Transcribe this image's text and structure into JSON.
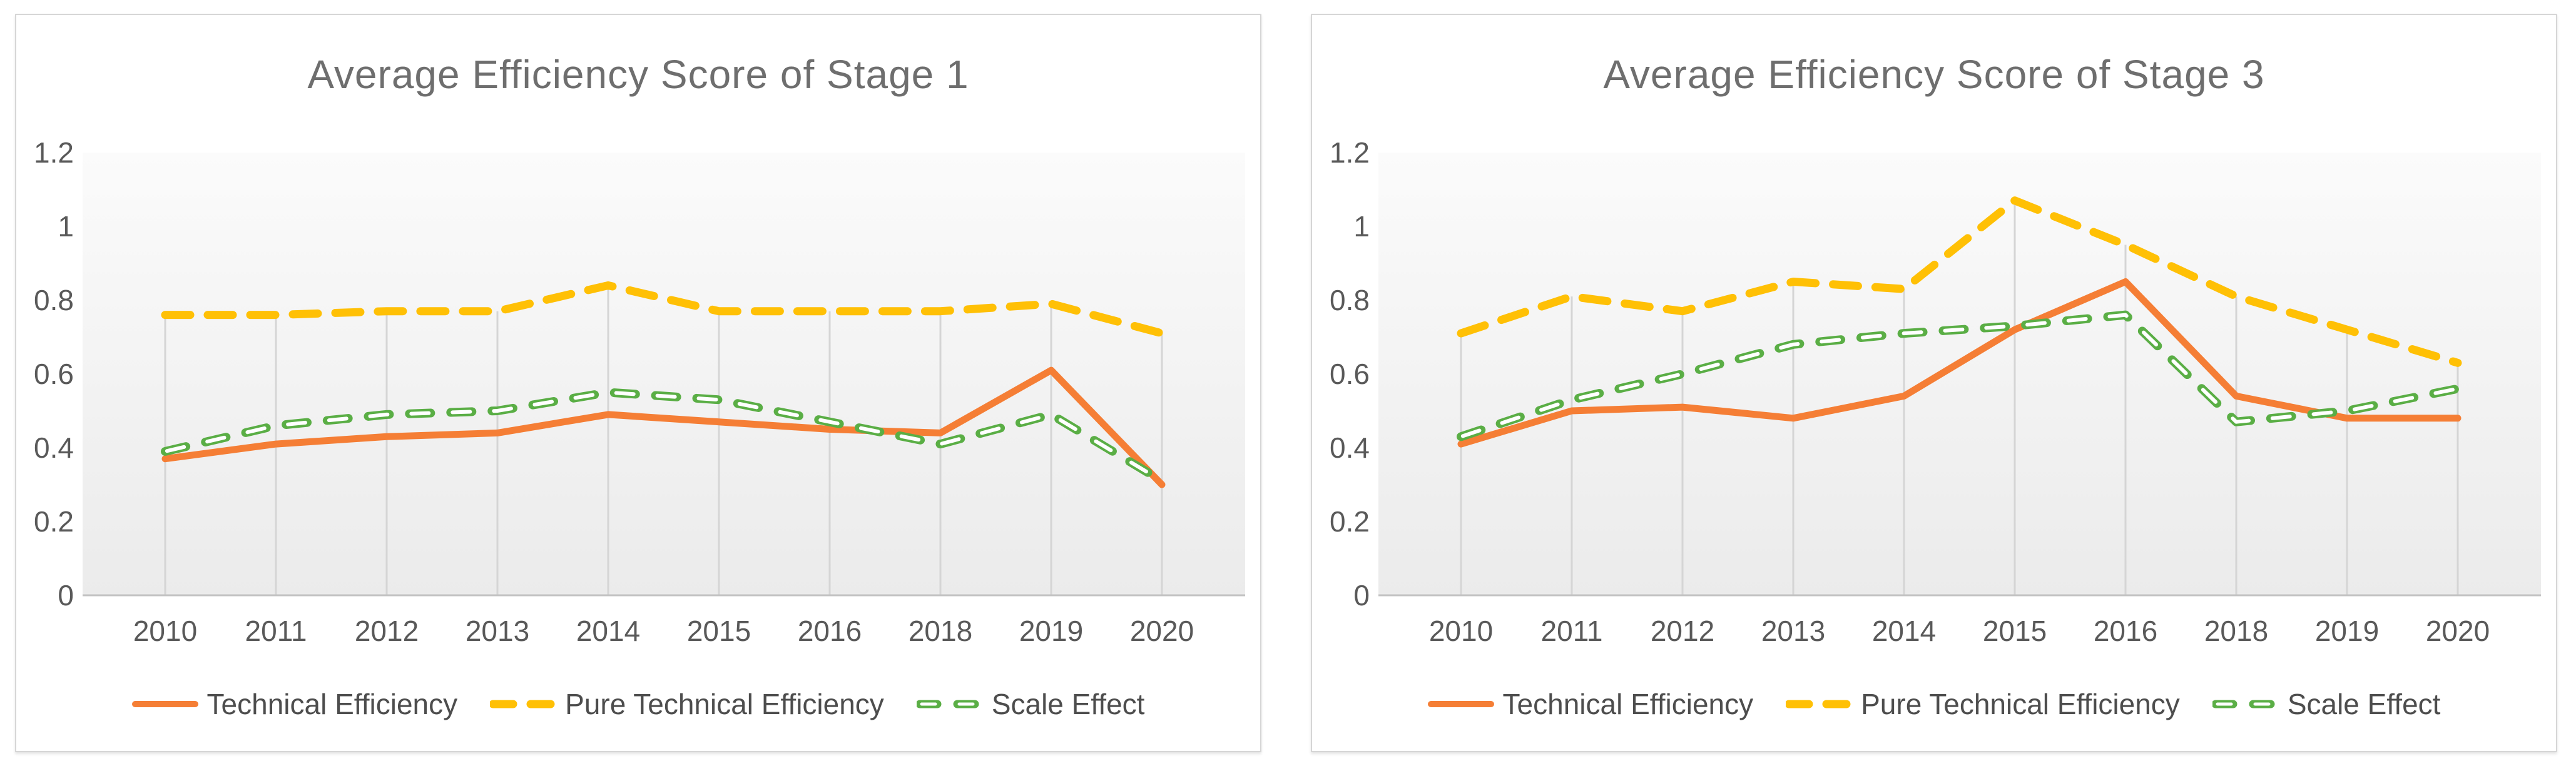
{
  "page": {
    "background_color": "#ffffff",
    "panel_border_color": "#d6d6d6",
    "dropline_color": "#d5d5d5",
    "axis_line_color": "#c2c2c2",
    "title_color": "#6e6e6e",
    "tick_label_color": "#595959",
    "legend_text_color": "#4d4d4d"
  },
  "chart_data": [
    {
      "type": "line",
      "title": "Average Efficiency Score of Stage 1",
      "categories": [
        "2010",
        "2011",
        "2012",
        "2013",
        "2014",
        "2015",
        "2016",
        "2018",
        "2019",
        "2020"
      ],
      "y_tick_labels": [
        "0",
        "0.2",
        "0.4",
        "0.6",
        "0.8",
        "1",
        "1.2"
      ],
      "y_ticks": [
        0,
        0.2,
        0.4,
        0.6,
        0.8,
        1,
        1.2
      ],
      "ylim": [
        0,
        1.2
      ],
      "grid": "vertical-drop-lines",
      "legend_position": "bottom",
      "series": [
        {
          "name": "Technical Efficiency",
          "color": "#f57e35",
          "style": "solid",
          "values": [
            0.37,
            0.41,
            0.43,
            0.44,
            0.49,
            0.47,
            0.45,
            0.44,
            0.61,
            0.3
          ]
        },
        {
          "name": "Pure Technical Efficiency",
          "color": "#ffc005",
          "style": "dash",
          "values": [
            0.76,
            0.76,
            0.77,
            0.77,
            0.84,
            0.77,
            0.77,
            0.77,
            0.79,
            0.71
          ]
        },
        {
          "name": "Scale Effect",
          "color": "#5aae45",
          "style": "hollow-dash",
          "values": [
            0.39,
            0.46,
            0.49,
            0.5,
            0.55,
            0.53,
            0.47,
            0.41,
            0.49,
            0.31
          ]
        }
      ]
    },
    {
      "type": "line",
      "title": "Average Efficiency Score of Stage 3",
      "categories": [
        "2010",
        "2011",
        "2012",
        "2013",
        "2014",
        "2015",
        "2016",
        "2018",
        "2019",
        "2020"
      ],
      "y_tick_labels": [
        "0",
        "0.2",
        "0.4",
        "0.6",
        "0.8",
        "1",
        "1.2"
      ],
      "y_ticks": [
        0,
        0.2,
        0.4,
        0.6,
        0.8,
        1,
        1.2
      ],
      "ylim": [
        0,
        1.2
      ],
      "grid": "vertical-drop-lines",
      "legend_position": "bottom",
      "series": [
        {
          "name": "Technical Efficiency",
          "color": "#f57e35",
          "style": "solid",
          "values": [
            0.41,
            0.5,
            0.51,
            0.48,
            0.54,
            0.72,
            0.85,
            0.54,
            0.48,
            0.48
          ]
        },
        {
          "name": "Pure Technical Efficiency",
          "color": "#ffc005",
          "style": "dash",
          "values": [
            0.71,
            0.81,
            0.77,
            0.85,
            0.83,
            1.07,
            0.95,
            0.81,
            0.72,
            0.63
          ]
        },
        {
          "name": "Scale Effect",
          "color": "#5aae45",
          "style": "hollow-dash",
          "values": [
            0.43,
            0.53,
            0.6,
            0.68,
            0.71,
            0.73,
            0.76,
            0.47,
            0.5,
            0.56
          ]
        }
      ]
    }
  ]
}
